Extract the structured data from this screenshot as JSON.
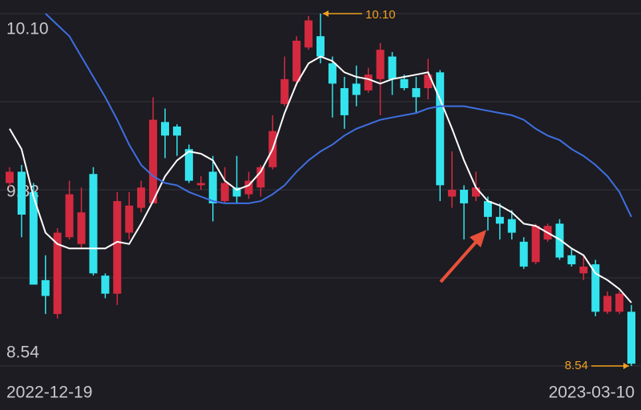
{
  "chart_data": {
    "type": "candlestick",
    "categories": [
      "2022-12-19",
      null,
      null,
      null,
      null,
      null,
      null,
      null,
      null,
      null,
      null,
      null,
      null,
      null,
      null,
      null,
      null,
      null,
      null,
      null,
      null,
      null,
      null,
      null,
      null,
      null,
      null,
      null,
      null,
      null,
      null,
      null,
      null,
      null,
      null,
      null,
      null,
      null,
      null,
      null,
      null,
      null,
      null,
      null,
      null,
      null,
      null,
      null,
      null,
      null,
      null,
      null,
      "2023-03-10"
    ],
    "open": [
      9.35,
      9.4,
      9.31,
      8.92,
      8.77,
      9.11,
      9.08,
      9.39,
      8.94,
      8.86,
      9.13,
      9.24,
      9.26,
      9.62,
      9.6,
      9.5,
      9.34,
      9.4,
      9.27,
      9.33,
      9.3,
      9.33,
      9.42,
      9.7,
      9.8,
      9.95,
      10.0,
      9.88,
      9.77,
      9.79,
      9.76,
      9.81,
      9.91,
      9.81,
      9.77,
      9.77,
      9.84,
      9.29,
      9.32,
      9.29,
      9.27,
      9.2,
      9.19,
      9.09,
      9.0,
      9.1,
      9.17,
      9.03,
      8.95,
      8.99,
      8.78,
      8.78,
      8.78
    ],
    "high": [
      9.42,
      9.43,
      9.35,
      9.03,
      9.15,
      9.36,
      9.33,
      9.42,
      8.95,
      9.31,
      9.31,
      9.36,
      9.73,
      9.68,
      9.61,
      9.52,
      9.38,
      9.47,
      9.42,
      9.47,
      9.4,
      9.43,
      9.65,
      9.91,
      10.0,
      10.09,
      10.1,
      9.91,
      9.82,
      9.87,
      9.86,
      9.97,
      9.93,
      9.83,
      9.82,
      9.9,
      9.85,
      9.49,
      9.34,
      9.4,
      9.29,
      9.26,
      9.23,
      9.11,
      9.17,
      9.17,
      9.19,
      9.06,
      9.03,
      9.01,
      8.87,
      8.87,
      8.81
    ],
    "low": [
      9.33,
      9.11,
      8.9,
      8.77,
      8.75,
      9.1,
      9.06,
      8.94,
      8.84,
      8.81,
      9.1,
      9.22,
      9.26,
      9.46,
      9.47,
      9.35,
      9.32,
      9.18,
      9.26,
      9.26,
      9.28,
      9.29,
      9.41,
      9.69,
      9.78,
      9.94,
      9.88,
      9.64,
      9.59,
      9.69,
      9.75,
      9.65,
      9.74,
      9.76,
      9.66,
      9.72,
      9.27,
      9.24,
      9.1,
      9.27,
      9.14,
      9.1,
      9.1,
      8.97,
      8.99,
      9.09,
      9.01,
      8.98,
      8.92,
      8.76,
      8.77,
      8.77,
      8.54
    ],
    "close": [
      9.4,
      9.21,
      8.9,
      8.85,
      9.13,
      9.3,
      9.22,
      8.95,
      8.86,
      9.27,
      9.25,
      9.33,
      9.63,
      9.56,
      9.56,
      9.36,
      9.35,
      9.26,
      9.35,
      9.29,
      9.36,
      9.42,
      9.58,
      9.81,
      9.98,
      10.07,
      9.91,
      9.79,
      9.65,
      9.74,
      9.83,
      9.94,
      9.81,
      9.77,
      9.73,
      9.83,
      9.34,
      9.32,
      9.26,
      9.33,
      9.2,
      9.17,
      9.13,
      8.98,
      9.16,
      9.16,
      9.02,
      8.99,
      8.98,
      8.78,
      8.85,
      8.86,
      8.55
    ],
    "up_color": "#d42a40",
    "down_color": "#33e4ee",
    "series": [
      {
        "color": "#ffffff",
        "values": [
          9.59,
          9.5,
          9.29,
          9.13,
          9.08,
          9.06,
          9.06,
          9.06,
          9.06,
          9.09,
          9.08,
          9.17,
          9.27,
          9.38,
          9.45,
          9.49,
          9.48,
          9.45,
          9.36,
          9.32,
          9.34,
          9.4,
          9.5,
          9.66,
          9.79,
          9.88,
          9.91,
          9.89,
          9.84,
          9.82,
          9.81,
          9.79,
          9.81,
          9.82,
          9.83,
          9.84,
          9.72,
          9.59,
          9.45,
          9.33,
          9.27,
          9.25,
          9.22,
          9.17,
          9.16,
          9.13,
          9.1,
          9.06,
          9.03,
          8.95,
          8.92,
          8.88,
          8.82
        ]
      },
      {
        "color": "#3f6fe0",
        "values": [
          null,
          null,
          null,
          10.1,
          10.05,
          10.0,
          9.91,
          9.82,
          9.73,
          9.63,
          9.52,
          9.43,
          9.38,
          9.35,
          9.34,
          9.31,
          9.29,
          9.27,
          9.26,
          9.26,
          9.26,
          9.27,
          9.3,
          9.34,
          9.4,
          9.45,
          9.49,
          9.52,
          9.56,
          9.59,
          9.61,
          9.63,
          9.64,
          9.65,
          9.66,
          9.68,
          9.69,
          9.69,
          9.69,
          9.68,
          9.67,
          9.66,
          9.65,
          9.63,
          9.59,
          9.56,
          9.54,
          9.5,
          9.47,
          9.43,
          9.38,
          9.31,
          9.2
        ]
      }
    ],
    "ylim": [
      8.54,
      10.1
    ],
    "yticks": [
      {
        "value": 10.1,
        "label": "10.10"
      },
      9.32,
      8.54
    ],
    "grid": true,
    "high_marker": {
      "value": 10.1,
      "label": "10.10"
    },
    "low_marker": {
      "value": 8.54,
      "label": "8.54"
    },
    "marker_color": "#f0a020"
  }
}
